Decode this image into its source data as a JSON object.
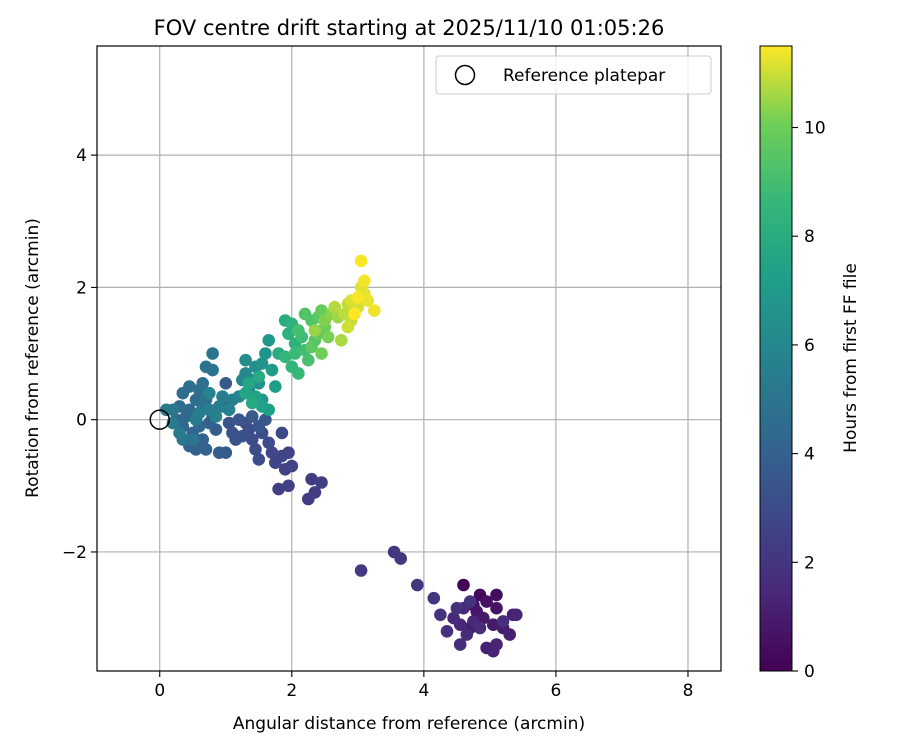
{
  "chart_data": {
    "type": "scatter",
    "title": "FOV centre drift starting at 2025/11/10 01:05:26",
    "xlabel": "Angular distance from reference (arcmin)",
    "ylabel": "Rotation from reference (arcmin)",
    "xlim": [
      -0.95,
      8.5
    ],
    "ylim": [
      -3.8,
      5.65
    ],
    "xticks": [
      0,
      2,
      4,
      6,
      8
    ],
    "xtick_labels": [
      "0",
      "2",
      "4",
      "6",
      "8"
    ],
    "yticks": [
      -2,
      0,
      2,
      4
    ],
    "ytick_labels": [
      "−2",
      "0",
      "2",
      "4"
    ],
    "grid": true,
    "legend": {
      "placement": "top-right",
      "label": "Reference platepar"
    },
    "reference_point": {
      "x": 0,
      "y": 0
    },
    "colorbar": {
      "label": "Hours from first FF file",
      "range": [
        0,
        11.5
      ],
      "ticks": [
        0,
        2,
        4,
        6,
        8,
        10
      ],
      "tick_labels": [
        "0",
        "2",
        "4",
        "6",
        "8",
        "10"
      ],
      "colormap": "viridis"
    },
    "points": [
      [
        4.6,
        -2.5,
        0.1
      ],
      [
        4.85,
        -2.65,
        0.3
      ],
      [
        5.1,
        -2.65,
        0.4
      ],
      [
        4.75,
        -2.8,
        0.5
      ],
      [
        4.95,
        -2.75,
        0.6
      ],
      [
        5.1,
        -2.85,
        0.7
      ],
      [
        4.8,
        -2.9,
        0.8
      ],
      [
        4.9,
        -3.0,
        0.9
      ],
      [
        5.05,
        -3.1,
        0.95
      ],
      [
        5.2,
        -3.15,
        1.0
      ],
      [
        4.7,
        -3.15,
        1.05
      ],
      [
        5.35,
        -2.95,
        1.1
      ],
      [
        5.3,
        -3.25,
        1.15
      ],
      [
        4.95,
        -3.45,
        1.2
      ],
      [
        5.05,
        -3.5,
        1.25
      ],
      [
        5.1,
        -3.4,
        1.3
      ],
      [
        5.4,
        -2.95,
        1.35
      ],
      [
        4.75,
        -3.05,
        1.4
      ],
      [
        4.55,
        -3.1,
        1.45
      ],
      [
        4.6,
        -2.85,
        1.5
      ],
      [
        4.45,
        -3.0,
        1.55
      ],
      [
        4.65,
        -3.25,
        1.6
      ],
      [
        4.85,
        -3.15,
        1.65
      ],
      [
        4.55,
        -3.4,
        1.7
      ],
      [
        4.35,
        -3.2,
        1.75
      ],
      [
        5.2,
        -3.05,
        1.8
      ],
      [
        4.5,
        -2.85,
        1.85
      ],
      [
        4.7,
        -2.75,
        1.9
      ],
      [
        4.25,
        -2.95,
        1.95
      ],
      [
        4.15,
        -2.7,
        2.0
      ],
      [
        3.9,
        -2.5,
        2.05
      ],
      [
        3.65,
        -2.1,
        2.1
      ],
      [
        3.55,
        -2.0,
        2.15
      ],
      [
        3.05,
        -2.28,
        2.2
      ],
      [
        2.25,
        -1.2,
        2.25
      ],
      [
        2.35,
        -1.1,
        2.3
      ],
      [
        2.3,
        -0.9,
        2.35
      ],
      [
        2.45,
        -0.95,
        2.4
      ],
      [
        1.8,
        -1.05,
        2.45
      ],
      [
        1.95,
        -1.0,
        2.5
      ],
      [
        1.9,
        -0.75,
        2.55
      ],
      [
        2.0,
        -0.7,
        2.6
      ],
      [
        1.95,
        -0.5,
        2.65
      ],
      [
        1.75,
        -0.65,
        2.7
      ],
      [
        1.85,
        -0.55,
        2.75
      ],
      [
        1.7,
        -0.5,
        2.8
      ],
      [
        1.85,
        -0.2,
        2.85
      ],
      [
        1.65,
        -0.35,
        2.9
      ],
      [
        1.5,
        -0.6,
        2.95
      ],
      [
        1.45,
        -0.45,
        3.0
      ],
      [
        1.4,
        -0.3,
        3.05
      ],
      [
        1.55,
        -0.2,
        3.1
      ],
      [
        1.35,
        -0.15,
        3.15
      ],
      [
        1.3,
        -0.05,
        3.2
      ],
      [
        1.25,
        -0.25,
        3.25
      ],
      [
        1.15,
        -0.3,
        3.3
      ],
      [
        1.1,
        -0.2,
        3.35
      ],
      [
        1.05,
        -0.05,
        3.4
      ],
      [
        1.2,
        0.0,
        3.45
      ],
      [
        1.5,
        -0.1,
        3.5
      ],
      [
        1.6,
        0.0,
        3.55
      ],
      [
        1.4,
        0.05,
        3.6
      ],
      [
        1.0,
        0.55,
        3.65
      ],
      [
        0.95,
        0.2,
        3.7
      ],
      [
        1.0,
        -0.5,
        3.75
      ],
      [
        0.9,
        -0.5,
        3.8
      ],
      [
        0.85,
        -0.15,
        3.85
      ],
      [
        0.75,
        -0.05,
        3.9
      ],
      [
        0.8,
        0.05,
        3.95
      ],
      [
        0.65,
        -0.3,
        4.0
      ],
      [
        0.7,
        -0.45,
        4.05
      ],
      [
        0.55,
        -0.45,
        4.1
      ],
      [
        0.45,
        -0.4,
        4.15
      ],
      [
        0.5,
        -0.2,
        4.2
      ],
      [
        0.6,
        -0.1,
        4.25
      ],
      [
        0.35,
        -0.1,
        4.3
      ],
      [
        0.4,
        0.05,
        4.35
      ],
      [
        0.25,
        0.0,
        4.4
      ],
      [
        0.3,
        0.2,
        4.45
      ],
      [
        0.45,
        0.15,
        4.5
      ],
      [
        0.55,
        0.3,
        4.55
      ],
      [
        0.35,
        0.4,
        4.6
      ],
      [
        0.45,
        0.5,
        4.65
      ],
      [
        0.6,
        0.45,
        4.7
      ],
      [
        0.65,
        0.55,
        4.75
      ],
      [
        0.7,
        0.3,
        4.8
      ],
      [
        0.7,
        0.8,
        4.85
      ],
      [
        0.8,
        1.0,
        4.9
      ],
      [
        0.8,
        0.75,
        4.95
      ],
      [
        0.65,
        0.2,
        5.0
      ],
      [
        0.5,
        -0.3,
        5.05
      ],
      [
        0.35,
        -0.3,
        5.1
      ],
      [
        0.2,
        0.15,
        5.15
      ],
      [
        0.1,
        0.15,
        5.2
      ],
      [
        0.2,
        -0.05,
        5.25
      ],
      [
        0.3,
        -0.2,
        5.3
      ],
      [
        0.55,
        0.0,
        5.35
      ],
      [
        0.6,
        0.1,
        5.4
      ],
      [
        0.75,
        0.15,
        5.45
      ],
      [
        0.9,
        0.2,
        5.5
      ],
      [
        0.95,
        0.35,
        5.55
      ],
      [
        1.1,
        0.3,
        5.6
      ],
      [
        0.85,
        0.05,
        5.65
      ],
      [
        1.05,
        0.15,
        5.7
      ],
      [
        0.75,
        0.4,
        5.75
      ],
      [
        1.2,
        0.35,
        5.85
      ],
      [
        1.25,
        0.6,
        5.95
      ],
      [
        1.3,
        0.7,
        6.05
      ],
      [
        1.35,
        0.45,
        6.15
      ],
      [
        1.3,
        0.9,
        6.25
      ],
      [
        1.4,
        0.6,
        6.35
      ],
      [
        1.45,
        0.8,
        6.45
      ],
      [
        1.5,
        0.55,
        6.55
      ],
      [
        1.55,
        0.85,
        6.65
      ],
      [
        1.6,
        1.0,
        6.75
      ],
      [
        1.55,
        0.3,
        6.85
      ],
      [
        1.65,
        1.2,
        6.95
      ],
      [
        1.7,
        0.75,
        7.05
      ],
      [
        1.75,
        0.5,
        7.15
      ],
      [
        1.65,
        0.15,
        7.25
      ],
      [
        1.55,
        0.2,
        7.35
      ],
      [
        1.45,
        0.35,
        7.45
      ],
      [
        1.3,
        0.4,
        7.55
      ],
      [
        1.35,
        0.55,
        7.65
      ],
      [
        1.4,
        0.25,
        7.75
      ],
      [
        1.5,
        0.65,
        7.85
      ],
      [
        1.8,
        1.0,
        7.95
      ],
      [
        1.9,
        1.5,
        8.05
      ],
      [
        1.95,
        1.3,
        8.15
      ],
      [
        2.0,
        1.45,
        8.25
      ],
      [
        2.05,
        1.15,
        8.35
      ],
      [
        1.9,
        0.95,
        8.45
      ],
      [
        2.0,
        0.8,
        8.55
      ],
      [
        2.1,
        0.7,
        8.65
      ],
      [
        2.05,
        1.0,
        8.75
      ],
      [
        2.15,
        1.25,
        8.85
      ],
      [
        2.2,
        1.05,
        8.95
      ],
      [
        2.1,
        1.35,
        9.05
      ],
      [
        2.25,
        0.9,
        9.15
      ],
      [
        2.3,
        1.5,
        9.25
      ],
      [
        2.2,
        1.6,
        9.35
      ],
      [
        2.35,
        1.2,
        9.45
      ],
      [
        2.4,
        1.55,
        9.55
      ],
      [
        2.3,
        1.1,
        9.65
      ],
      [
        2.4,
        1.3,
        9.75
      ],
      [
        2.45,
        1.65,
        9.85
      ],
      [
        2.5,
        1.4,
        9.95
      ],
      [
        2.45,
        1.0,
        10.05
      ],
      [
        2.55,
        1.25,
        10.15
      ],
      [
        2.5,
        1.5,
        10.25
      ],
      [
        2.6,
        1.6,
        10.35
      ],
      [
        2.35,
        1.35,
        10.45
      ],
      [
        2.7,
        1.55,
        10.55
      ],
      [
        2.75,
        1.2,
        10.65
      ],
      [
        2.65,
        1.7,
        10.75
      ],
      [
        2.8,
        1.6,
        10.85
      ],
      [
        2.85,
        1.75,
        10.9
      ],
      [
        2.9,
        1.5,
        10.95
      ],
      [
        2.95,
        1.65,
        11.0
      ],
      [
        2.85,
        1.4,
        11.05
      ],
      [
        3.0,
        1.7,
        11.1
      ],
      [
        2.9,
        1.8,
        11.15
      ],
      [
        3.05,
        2.0,
        11.2
      ],
      [
        3.1,
        1.9,
        11.25
      ],
      [
        3.15,
        1.8,
        11.3
      ],
      [
        3.25,
        1.65,
        11.35
      ],
      [
        3.1,
        2.1,
        11.4
      ],
      [
        3.05,
        2.4,
        11.45
      ],
      [
        2.95,
        1.6,
        11.5
      ],
      [
        3.0,
        1.85,
        11.42
      ]
    ]
  }
}
